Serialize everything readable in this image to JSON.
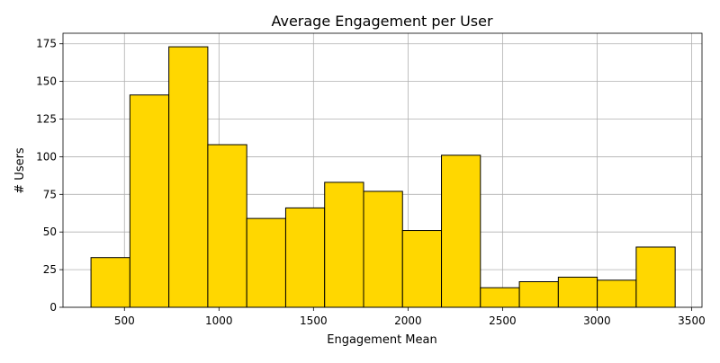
{
  "chart_data": {
    "type": "bar",
    "subtype": "histogram",
    "title": "Average Engagement per User",
    "xlabel": "Engagement Mean",
    "ylabel": "# Users",
    "bar_color": "#FFD700",
    "edge_color": "#000000",
    "grid": true,
    "xlim": [
      175,
      3555
    ],
    "ylim": [
      0,
      182
    ],
    "x_ticks": [
      500,
      1000,
      1500,
      2000,
      2500,
      3000,
      3500
    ],
    "y_ticks": [
      0,
      25,
      50,
      75,
      100,
      125,
      150,
      175
    ],
    "bin_edges": [
      323,
      529,
      735,
      941,
      1147,
      1353,
      1559,
      1765,
      1971,
      2177,
      2383,
      2589,
      2795,
      3001,
      3207,
      3413
    ],
    "values": [
      33,
      141,
      173,
      108,
      59,
      66,
      83,
      77,
      51,
      101,
      13,
      17,
      20,
      18,
      40
    ]
  }
}
